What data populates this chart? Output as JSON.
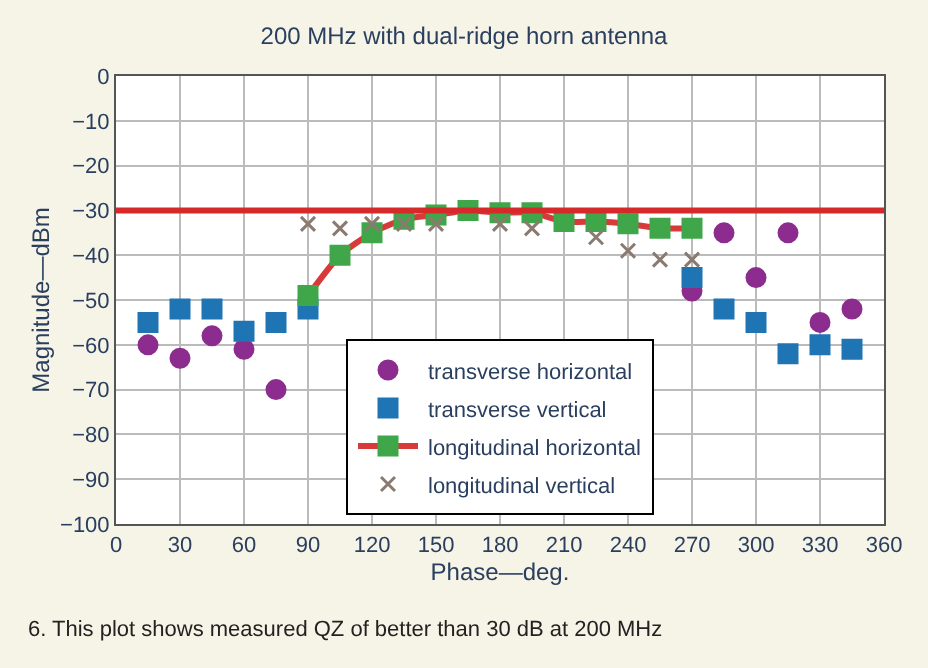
{
  "chart_data": {
    "type": "scatter",
    "title": "200 MHz with dual-ridge horn antenna",
    "xlabel": "Phase—deg.",
    "ylabel": "Magnitude—dBm",
    "xlim": [
      0,
      360
    ],
    "xticks": [
      0,
      30,
      60,
      90,
      120,
      150,
      180,
      210,
      240,
      270,
      300,
      330,
      360
    ],
    "ylim": [
      -100,
      0
    ],
    "yticks": [
      -100,
      -90,
      -80,
      -70,
      -60,
      -50,
      -40,
      -30,
      -20,
      -10,
      0
    ],
    "grid": true,
    "legend": "bottom",
    "series": [
      {
        "name": "transverse horizontal",
        "color": "#8b2c8e",
        "marker": "circle",
        "x": [
          15,
          30,
          45,
          60,
          75,
          270,
          285,
          300,
          315,
          330,
          345
        ],
        "values": [
          -60,
          -63,
          -58,
          -61,
          -70,
          -48,
          -35,
          -45,
          -35,
          -55,
          -52
        ]
      },
      {
        "name": "transverse vertical",
        "color": "#1f74b4",
        "marker": "square",
        "x": [
          15,
          30,
          45,
          60,
          75,
          90,
          270,
          285,
          300,
          315,
          330,
          345
        ],
        "values": [
          -55,
          -52,
          -52,
          -57,
          -55,
          -52,
          -45,
          -52,
          -55,
          -62,
          -60,
          -61
        ]
      },
      {
        "name": "longitudinal horizontal",
        "type": "line",
        "color": "#d83a3a",
        "colors": [
          "#3fa64a",
          "#3fa64a",
          "#3fa64a",
          "#3fa64a",
          "#3fa64a",
          "#3fa64a",
          "#3fa64a",
          "#3fa64a",
          "#3fa64a",
          "#3fa64a",
          "#3fa64a",
          "#3fa64a",
          "#3fa64a"
        ],
        "marker": "square",
        "x": [
          90,
          105,
          120,
          135,
          150,
          165,
          180,
          195,
          210,
          225,
          240,
          255,
          270
        ],
        "values": [
          -49,
          -40,
          -35,
          -32,
          -31,
          -30,
          -30.5,
          -30.5,
          -32.5,
          -32.5,
          -33,
          -34,
          -34
        ]
      },
      {
        "name": "longitudinal vertical",
        "color": "#8a7a70",
        "marker": "cross",
        "x": [
          90,
          105,
          120,
          135,
          150,
          180,
          195,
          225,
          240,
          255,
          270
        ],
        "values": [
          -33,
          -34,
          -33,
          -33,
          -33,
          -33,
          -34,
          -36,
          -39,
          -41,
          -41
        ]
      }
    ],
    "ref_lines": [
      {
        "axis": "y",
        "value": -30,
        "color": "#d62a2a"
      }
    ],
    "annotations": [
      "6. This plot shows measured QZ of better than 30 dB at 200 MHz"
    ]
  }
}
